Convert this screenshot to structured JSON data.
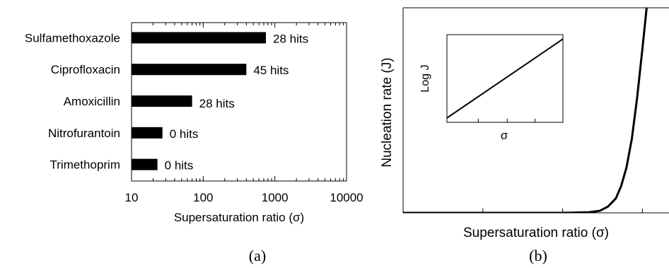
{
  "chart_data": [
    {
      "type": "bar",
      "orientation": "horizontal",
      "panel_label": "(a)",
      "xlabel": "Supersaturation ratio (σ)",
      "x_scale": "log",
      "xlim": [
        10,
        10000
      ],
      "x_ticks": [
        "10",
        "100",
        "1000",
        "10000"
      ],
      "categories": [
        "Sulfamethoxazole",
        "Ciprofloxacin",
        "Amoxicillin",
        "Nitrofurantoin",
        "Trimethoprim"
      ],
      "values": [
        750,
        400,
        70,
        27,
        23
      ],
      "annotations": [
        "28 hits",
        "45 hits",
        "28 hits",
        "0 hits",
        "0 hits"
      ],
      "bar_color": "#000000"
    },
    {
      "type": "line",
      "panel_label": "(b)",
      "xlabel": "Supersaturation ratio (σ)",
      "ylabel": "Nucleation rate (J)",
      "x_ticks_labeled": false,
      "y_ticks_labeled": false,
      "curve": "exponential",
      "x": [
        0,
        0.2,
        0.4,
        0.6,
        0.7,
        0.74,
        0.77,
        0.8,
        0.82,
        0.84,
        0.86,
        0.88,
        0.9,
        0.92
      ],
      "y": [
        0,
        0,
        0,
        0,
        0.003,
        0.01,
        0.03,
        0.07,
        0.13,
        0.22,
        0.36,
        0.56,
        0.8,
        1.05
      ],
      "xlim": [
        0,
        1
      ],
      "ylim": [
        0,
        1
      ],
      "line_color": "#000000",
      "inset": {
        "type": "line",
        "xlabel": "σ",
        "ylabel": "Log J",
        "x": [
          0,
          1
        ],
        "y": [
          0.05,
          0.95
        ],
        "xlim": [
          0,
          1
        ],
        "ylim": [
          0,
          1
        ]
      }
    }
  ]
}
